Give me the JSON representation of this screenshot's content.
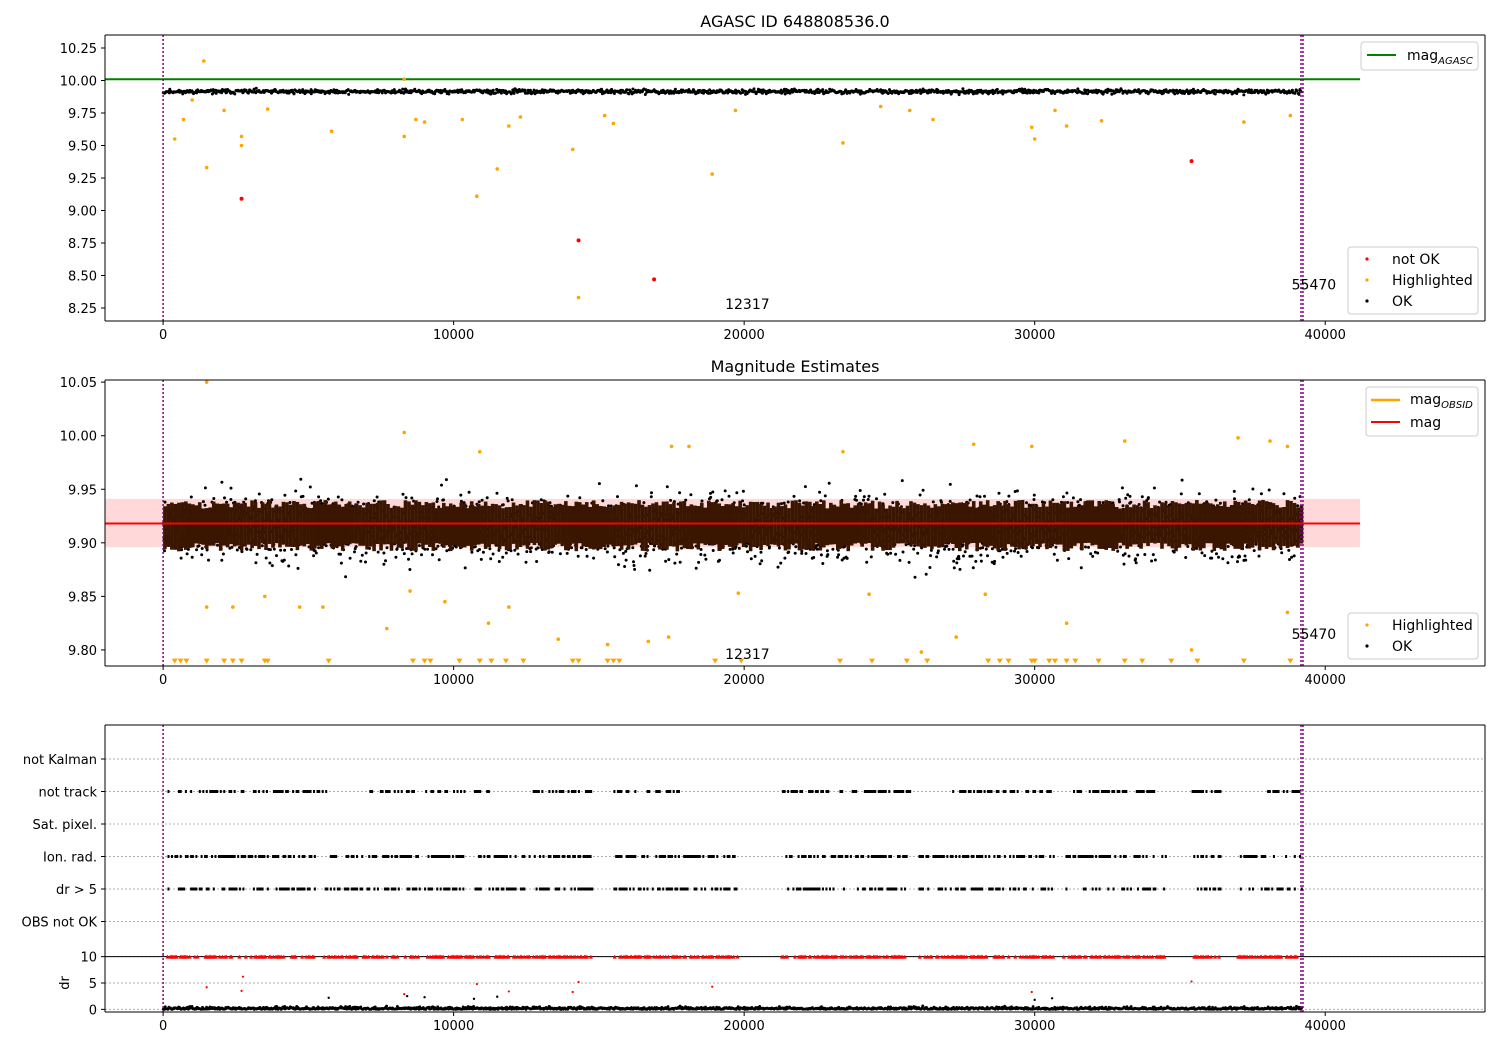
{
  "chart_data": [
    {
      "type": "scatter",
      "title": "AGASC ID 648808536.0",
      "xlim": [
        -2000,
        45500
      ],
      "ylim": [
        8.15,
        10.35
      ],
      "xticks": [
        0,
        10000,
        20000,
        30000,
        40000
      ],
      "xtick_labels": [
        "0",
        "10000",
        "20000",
        "30000",
        "40000"
      ],
      "yticks": [
        8.25,
        8.5,
        8.75,
        9.0,
        9.25,
        9.5,
        9.75,
        10.0,
        10.25
      ],
      "ytick_labels": [
        "8.25",
        "8.50",
        "8.75",
        "9.00",
        "9.25",
        "9.50",
        "9.75",
        "10.00",
        "10.25"
      ],
      "vlines": {
        "obs_start_x": 0,
        "obs_end_x": 39200,
        "color": "#800080",
        "style": "dotted"
      },
      "hlines": [
        {
          "name": "mag_AGASC",
          "y": 10.01,
          "x_range": [
            -2000,
            41200
          ],
          "color": "#008000"
        }
      ],
      "ok_band": {
        "x_range": [
          0,
          39200
        ],
        "y_center": 9.915,
        "y_halfwidth": 0.03
      },
      "series": [
        {
          "name": "not OK",
          "color": "#ff0000",
          "points": [
            [
              2700,
              9.09
            ],
            [
              14300,
              8.77
            ],
            [
              16900,
              8.47
            ],
            [
              35400,
              9.38
            ]
          ]
        },
        {
          "name": "Highlighted",
          "color": "#ffa500",
          "points": [
            [
              1400,
              10.15
            ],
            [
              1500,
              9.33
            ],
            [
              400,
              9.55
            ],
            [
              700,
              9.7
            ],
            [
              2700,
              9.57
            ],
            [
              2700,
              9.5
            ],
            [
              5800,
              9.61
            ],
            [
              8300,
              9.57
            ],
            [
              8700,
              9.7
            ],
            [
              9000,
              9.68
            ],
            [
              10300,
              9.7
            ],
            [
              10800,
              9.11
            ],
            [
              11500,
              9.32
            ],
            [
              11900,
              9.65
            ],
            [
              12300,
              9.72
            ],
            [
              14100,
              9.47
            ],
            [
              14300,
              8.33
            ],
            [
              15200,
              9.73
            ],
            [
              15500,
              9.67
            ],
            [
              18900,
              9.28
            ],
            [
              19700,
              9.77
            ],
            [
              23400,
              9.52
            ],
            [
              24700,
              9.8
            ],
            [
              25700,
              9.77
            ],
            [
              26500,
              9.7
            ],
            [
              29900,
              9.64
            ],
            [
              30000,
              9.55
            ],
            [
              30700,
              9.77
            ],
            [
              31100,
              9.65
            ],
            [
              32300,
              9.69
            ],
            [
              37200,
              9.68
            ],
            [
              38800,
              9.73
            ],
            [
              8300,
              10.01
            ],
            [
              1000,
              9.85
            ],
            [
              2100,
              9.77
            ],
            [
              3600,
              9.78
            ]
          ]
        },
        {
          "name": "OK",
          "color": "#000000",
          "points": []
        }
      ],
      "legends": [
        {
          "position": "upper-right",
          "items": [
            {
              "label_main": "mag",
              "label_sub": "AGASC",
              "color": "#008000",
              "kind": "line"
            }
          ]
        },
        {
          "position": "lower-right",
          "items": [
            {
              "label": "not OK",
              "color": "#ff0000",
              "kind": "point"
            },
            {
              "label": "Highlighted",
              "color": "#ffa500",
              "kind": "point"
            },
            {
              "label": "OK",
              "color": "#000000",
              "kind": "point"
            }
          ]
        }
      ],
      "annotations": [
        {
          "text": "12317",
          "x": 19000,
          "y": 8.22
        },
        {
          "text": "55470",
          "x": 38500,
          "y": 8.37
        }
      ]
    },
    {
      "type": "scatter",
      "title": "Magnitude Estimates",
      "xlim": [
        -2000,
        45500
      ],
      "ylim": [
        9.785,
        10.052
      ],
      "xticks": [
        0,
        10000,
        20000,
        30000,
        40000
      ],
      "xtick_labels": [
        "0",
        "10000",
        "20000",
        "30000",
        "40000"
      ],
      "yticks": [
        9.8,
        9.85,
        9.9,
        9.95,
        10.0,
        10.05
      ],
      "ytick_labels": [
        "9.80",
        "9.85",
        "9.90",
        "9.95",
        "10.00",
        "10.05"
      ],
      "vlines": {
        "obs_start_x": 0,
        "obs_end_x": 39200,
        "color": "#800080",
        "style": "dotted"
      },
      "hlines": [
        {
          "name": "mag",
          "y": 9.918,
          "x_range": [
            -2000,
            41200
          ],
          "color": "#ff0000"
        }
      ],
      "hband": {
        "y_low": 9.896,
        "y_high": 9.941,
        "x_range": [
          -2000,
          41200
        ],
        "color": "#ffc0c0"
      },
      "ok_band": {
        "x_range": [
          0,
          39200
        ],
        "y_center": 9.915,
        "y_halfwidth": 0.02
      },
      "obsid_band_color": "#3a1500",
      "series": [
        {
          "name": "Highlighted",
          "color": "#ffa500",
          "points": [
            [
              1500,
              10.05
            ],
            [
              8300,
              10.003
            ],
            [
              10900,
              9.985
            ],
            [
              17500,
              9.99
            ],
            [
              18100,
              9.99
            ],
            [
              23400,
              9.985
            ],
            [
              27900,
              9.992
            ],
            [
              29900,
              9.99
            ],
            [
              33100,
              9.995
            ],
            [
              37000,
              9.998
            ],
            [
              38100,
              9.995
            ],
            [
              38700,
              9.99
            ],
            [
              1500,
              9.84
            ],
            [
              2400,
              9.84
            ],
            [
              3500,
              9.85
            ],
            [
              4700,
              9.84
            ],
            [
              5500,
              9.84
            ],
            [
              7700,
              9.82
            ],
            [
              8500,
              9.855
            ],
            [
              9700,
              9.845
            ],
            [
              11200,
              9.825
            ],
            [
              11900,
              9.84
            ],
            [
              13600,
              9.81
            ],
            [
              15300,
              9.805
            ],
            [
              16700,
              9.808
            ],
            [
              17400,
              9.812
            ],
            [
              19800,
              9.853
            ],
            [
              24300,
              9.852
            ],
            [
              26100,
              9.798
            ],
            [
              27300,
              9.812
            ],
            [
              28300,
              9.852
            ],
            [
              31100,
              9.825
            ],
            [
              35400,
              9.8
            ],
            [
              38700,
              9.835
            ]
          ]
        },
        {
          "name": "OK",
          "color": "#000000",
          "points": []
        }
      ],
      "floor_markers": {
        "y": 9.79,
        "color": "#ffa500",
        "x": [
          400,
          600,
          800,
          1500,
          2100,
          2400,
          2700,
          3500,
          3600,
          5700,
          8600,
          9000,
          9200,
          10200,
          10900,
          11300,
          11800,
          12400,
          14100,
          14300,
          15300,
          15500,
          15700,
          19000,
          19900,
          23300,
          24400,
          25600,
          26300,
          28400,
          28800,
          29100,
          29900,
          30000,
          30500,
          30700,
          31100,
          31400,
          32200,
          33100,
          33700,
          34700,
          35600,
          37200,
          38800
        ]
      },
      "legends": [
        {
          "position": "upper-right",
          "items": [
            {
              "label_main": "mag",
              "label_sub": "OBSID",
              "color": "#ffa500",
              "kind": "line"
            },
            {
              "label": "mag",
              "color": "#ff0000",
              "kind": "line"
            }
          ]
        },
        {
          "position": "lower-right",
          "items": [
            {
              "label": "Highlighted",
              "color": "#ffa500",
              "kind": "point"
            },
            {
              "label": "OK",
              "color": "#000000",
              "kind": "point"
            }
          ]
        }
      ],
      "annotations": [
        {
          "text": "12317",
          "x": 19000,
          "y": 9.796
        },
        {
          "text": "55470",
          "x": 38500,
          "y": 9.815
        }
      ]
    },
    {
      "type": "scatter",
      "title": "",
      "xlim": [
        -2000,
        45500
      ],
      "categories": [
        "not Kalman",
        "not track",
        "Sat. pixel.",
        "Ion. rad.",
        "dr > 5",
        "OBS not OK"
      ],
      "flag_runs": {
        "not track": [
          [
            150,
            3300
          ],
          [
            3300,
            5600
          ],
          [
            7100,
            11300
          ],
          [
            12600,
            14800
          ],
          [
            15500,
            17800
          ],
          [
            21300,
            25800
          ],
          [
            27100,
            30700
          ],
          [
            31200,
            34100
          ],
          [
            35400,
            36600
          ],
          [
            38000,
            39200
          ]
        ],
        "Ion. rad.": [
          [
            150,
            5200
          ],
          [
            5500,
            14800
          ],
          [
            15500,
            19800
          ],
          [
            21300,
            25600
          ],
          [
            26000,
            30700
          ],
          [
            31000,
            34500
          ],
          [
            35400,
            36400
          ],
          [
            37000,
            39200
          ]
        ],
        "dr > 5": [
          [
            150,
            5200
          ],
          [
            5500,
            14800
          ],
          [
            15500,
            19800
          ],
          [
            21300,
            25600
          ],
          [
            26000,
            30700
          ],
          [
            31000,
            34500
          ],
          [
            35400,
            36400
          ],
          [
            37000,
            39200
          ]
        ]
      },
      "vlines": {
        "obs_start_x": 0,
        "obs_end_x": 39200,
        "color": "#800080",
        "style": "dotted"
      }
    },
    {
      "type": "scatter",
      "title": "",
      "ylabel": "dr",
      "xlim": [
        -2000,
        45500
      ],
      "ylim": [
        -0.5,
        10.5
      ],
      "xticks": [
        0,
        10000,
        20000,
        30000,
        40000
      ],
      "xtick_labels": [
        "0",
        "10000",
        "20000",
        "30000",
        "40000"
      ],
      "yticks": [
        0,
        5,
        10
      ],
      "ytick_labels": [
        "0",
        "5",
        "10"
      ],
      "clip_line_y": 10,
      "dr_clipped_runs": [
        [
          150,
          5200
        ],
        [
          5500,
          14800
        ],
        [
          15500,
          19800
        ],
        [
          21300,
          25600
        ],
        [
          26000,
          30700
        ],
        [
          31000,
          34500
        ],
        [
          35400,
          36400
        ],
        [
          37000,
          39200
        ]
      ],
      "dr_outliers": [
        [
          1500,
          4.2
        ],
        [
          2700,
          3.5
        ],
        [
          2750,
          6.2
        ],
        [
          8300,
          2.9
        ],
        [
          10800,
          4.8
        ],
        [
          11900,
          3.4
        ],
        [
          14100,
          3.3
        ],
        [
          14300,
          5.2
        ],
        [
          18900,
          4.3
        ],
        [
          29900,
          3.3
        ],
        [
          35400,
          5.3
        ]
      ],
      "dr_small_points": [
        [
          5700,
          2.2
        ],
        [
          8400,
          2.5
        ],
        [
          9000,
          2.3
        ],
        [
          10700,
          2.0
        ],
        [
          11500,
          2.4
        ],
        [
          30600,
          2.1
        ],
        [
          30000,
          1.8
        ]
      ],
      "vlines": {
        "obs_start_x": 0,
        "obs_end_x": 39200,
        "color": "#800080",
        "style": "dotted"
      }
    }
  ]
}
